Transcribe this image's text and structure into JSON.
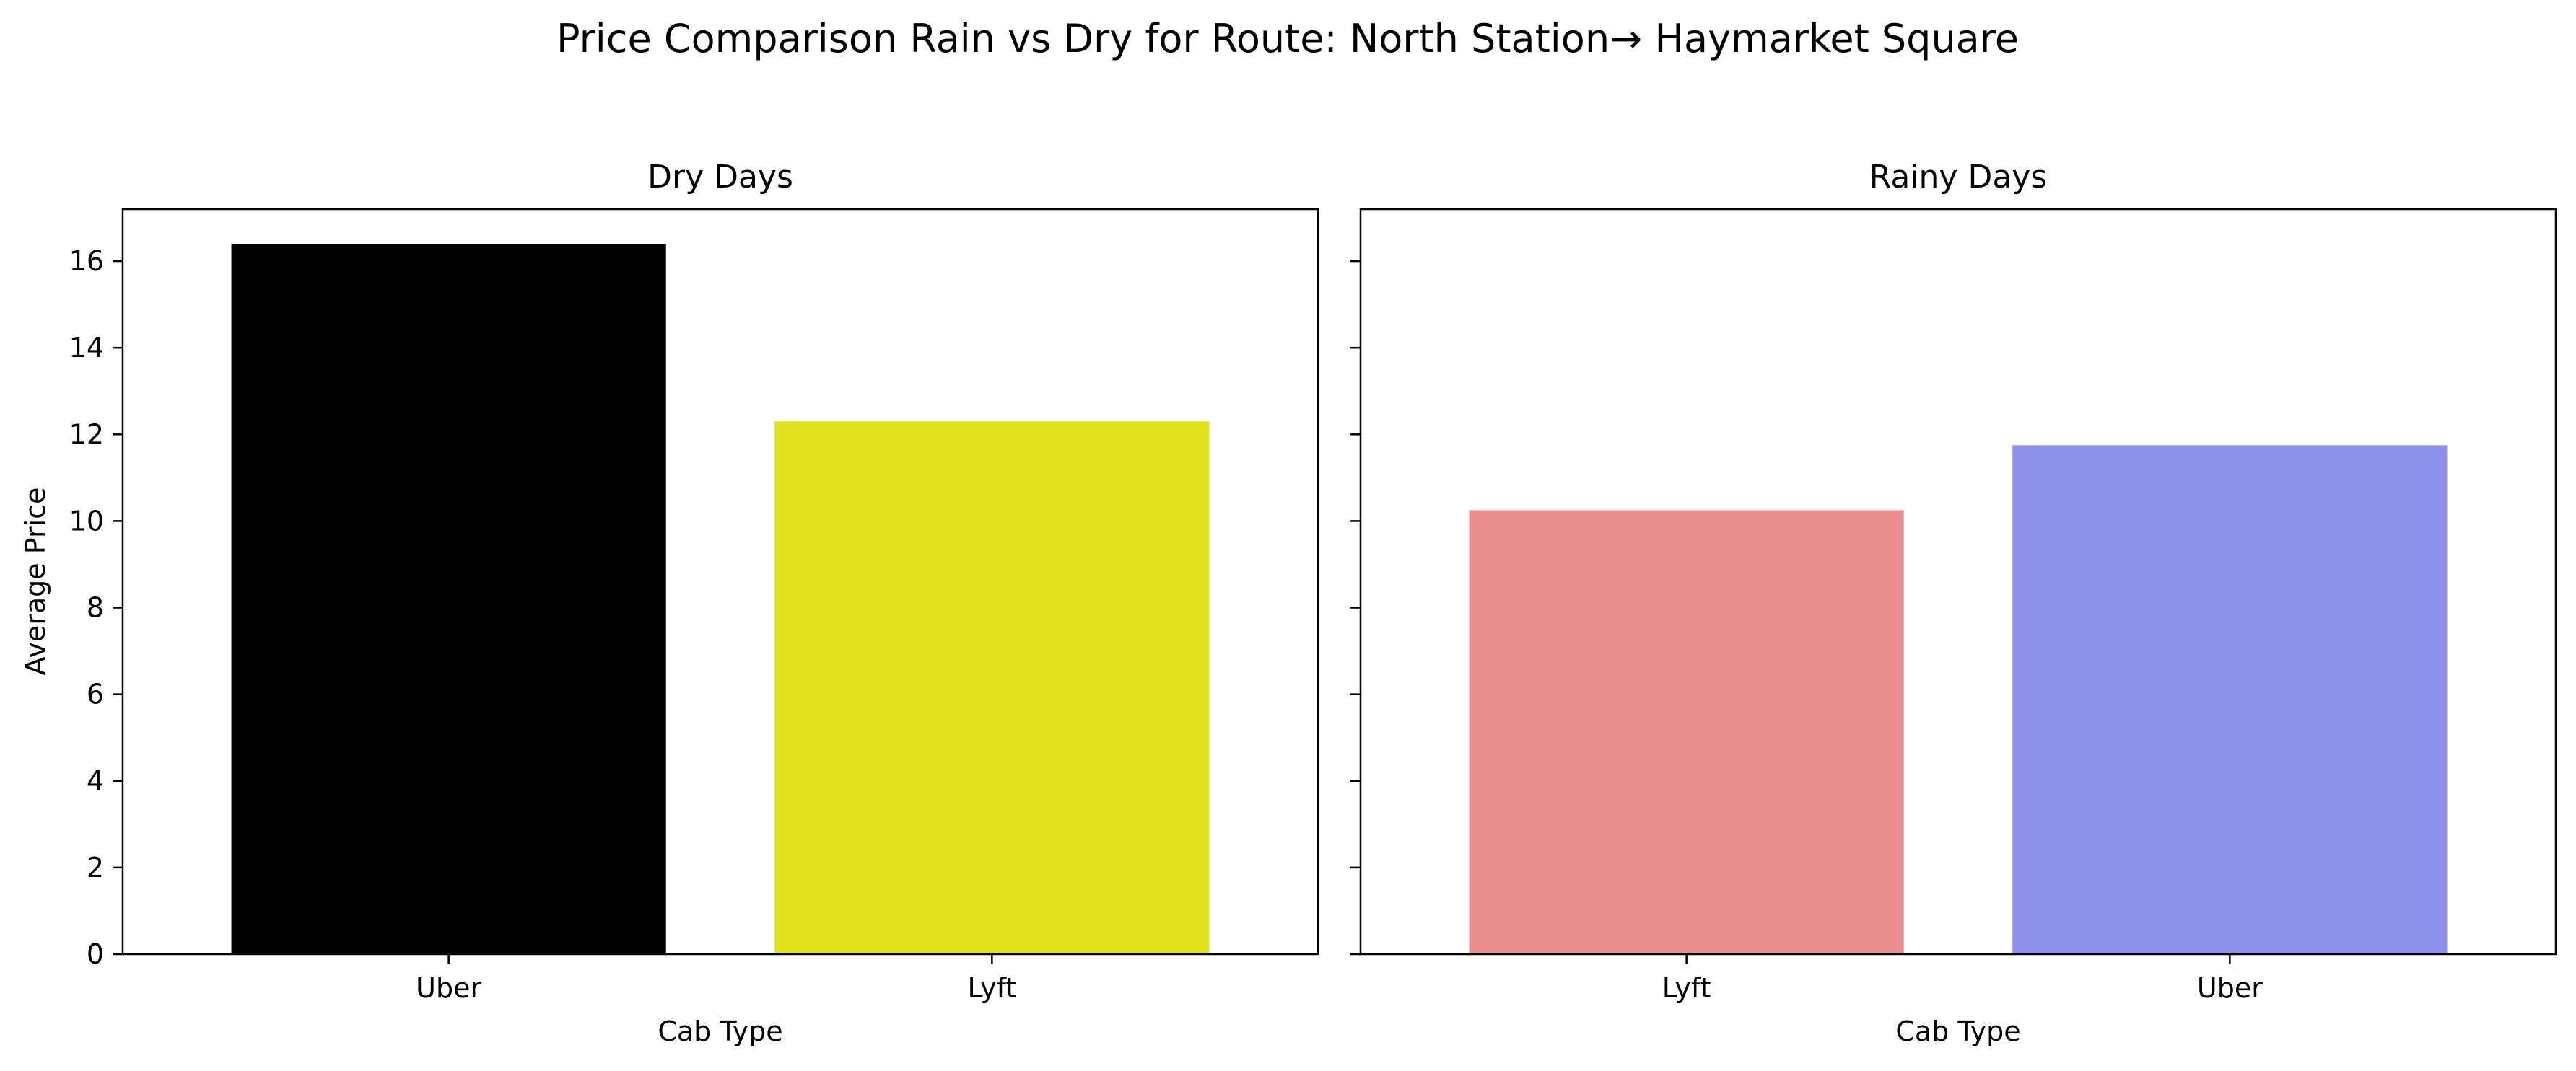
{
  "chart_data": {
    "type": "bar",
    "title": "Price Comparison Rain vs Dry for Route: North Station→ Haymarket Square",
    "ylim": [
      0,
      17.2
    ],
    "yticks": [
      0,
      2,
      4,
      6,
      8,
      10,
      12,
      14,
      16
    ],
    "shared_y": true,
    "grid": false,
    "panels": [
      {
        "title": "Dry Days",
        "xlabel": "Cab Type",
        "ylabel": "Average Price",
        "categories": [
          "Uber",
          "Lyft"
        ],
        "values": [
          16.4,
          12.3
        ],
        "colors": [
          "#000000",
          "#dfe01e"
        ]
      },
      {
        "title": "Rainy Days",
        "xlabel": "Cab Type",
        "ylabel": "",
        "categories": [
          "Lyft",
          "Uber"
        ],
        "values": [
          10.25,
          11.75
        ],
        "colors": [
          "#ec8f8f",
          "#8f90ec"
        ]
      }
    ]
  }
}
